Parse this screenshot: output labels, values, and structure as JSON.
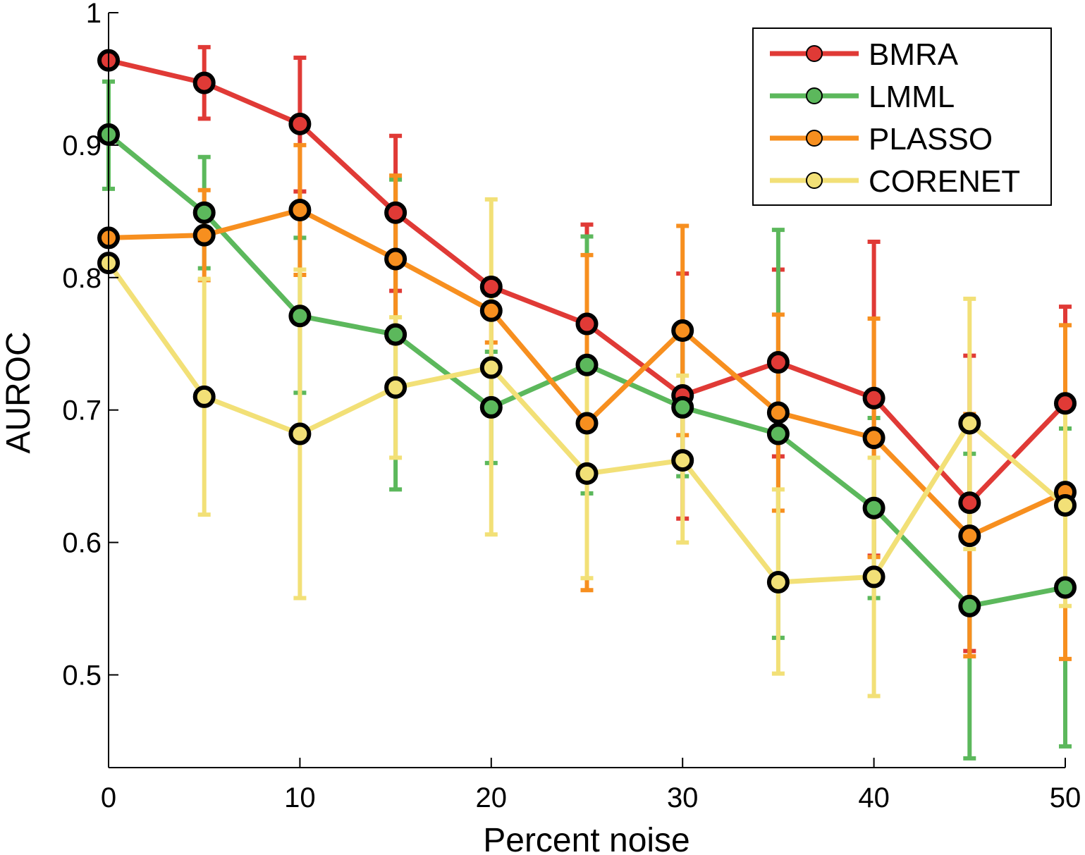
{
  "chart_data": {
    "type": "line",
    "xlabel": "Percent noise",
    "ylabel": "AUROC",
    "x": [
      0,
      5,
      10,
      15,
      20,
      25,
      30,
      35,
      40,
      45,
      50
    ],
    "xlim": [
      0,
      50
    ],
    "ylim": [
      0.43,
      1.0
    ],
    "xticks": [
      0,
      10,
      20,
      30,
      40,
      50
    ],
    "yticks": [
      0.5,
      0.6,
      0.7,
      0.8,
      0.9,
      1
    ],
    "ytick_labels": [
      "0.5",
      "0.6",
      "0.7",
      "0.8",
      "0.9",
      "1"
    ],
    "grid": false,
    "legend_position": "top-right",
    "series": [
      {
        "name": "BMRA",
        "color": "#e03a36",
        "values": [
          0.964,
          0.947,
          0.916,
          0.849,
          0.793,
          0.765,
          0.711,
          0.736,
          0.709,
          0.63,
          0.705
        ],
        "err_low": [
          null,
          0.92,
          0.865,
          0.79,
          0.787,
          0.688,
          0.618,
          0.665,
          0.59,
          0.518,
          0.632
        ],
        "err_high": [
          null,
          0.974,
          0.966,
          0.907,
          0.798,
          0.84,
          0.803,
          0.806,
          0.827,
          0.741,
          0.778
        ]
      },
      {
        "name": "LMML",
        "color": "#5cb85c",
        "values": [
          0.908,
          0.849,
          0.771,
          0.757,
          0.702,
          0.734,
          0.702,
          0.682,
          0.626,
          0.552,
          0.566
        ],
        "err_low": [
          0.867,
          0.807,
          0.713,
          0.64,
          0.66,
          0.637,
          0.65,
          0.528,
          0.558,
          0.437,
          0.446
        ],
        "err_high": [
          0.948,
          0.891,
          0.83,
          0.874,
          0.744,
          0.831,
          0.754,
          0.836,
          0.694,
          0.667,
          0.686
        ]
      },
      {
        "name": "PLASSO",
        "color": "#f78f1f",
        "values": [
          0.83,
          0.832,
          0.851,
          0.814,
          0.775,
          0.69,
          0.76,
          0.698,
          0.679,
          0.605,
          0.638
        ],
        "err_low": [
          null,
          0.798,
          0.802,
          0.751,
          0.799,
          0.564,
          0.681,
          0.624,
          0.589,
          0.514,
          0.512
        ],
        "err_high": [
          null,
          0.866,
          0.9,
          0.877,
          0.751,
          0.817,
          0.839,
          0.772,
          0.769,
          0.697,
          0.764
        ]
      },
      {
        "name": "CORENET",
        "color": "#f2e077",
        "values": [
          0.811,
          0.71,
          0.682,
          0.717,
          0.732,
          0.652,
          0.662,
          0.57,
          0.574,
          0.69,
          0.628
        ],
        "err_low": [
          null,
          0.621,
          0.558,
          0.664,
          0.606,
          0.573,
          0.6,
          0.501,
          0.484,
          0.595,
          0.552
        ],
        "err_high": [
          null,
          0.799,
          0.806,
          0.77,
          0.859,
          0.732,
          0.726,
          0.64,
          0.664,
          0.784,
          0.705
        ]
      }
    ]
  }
}
